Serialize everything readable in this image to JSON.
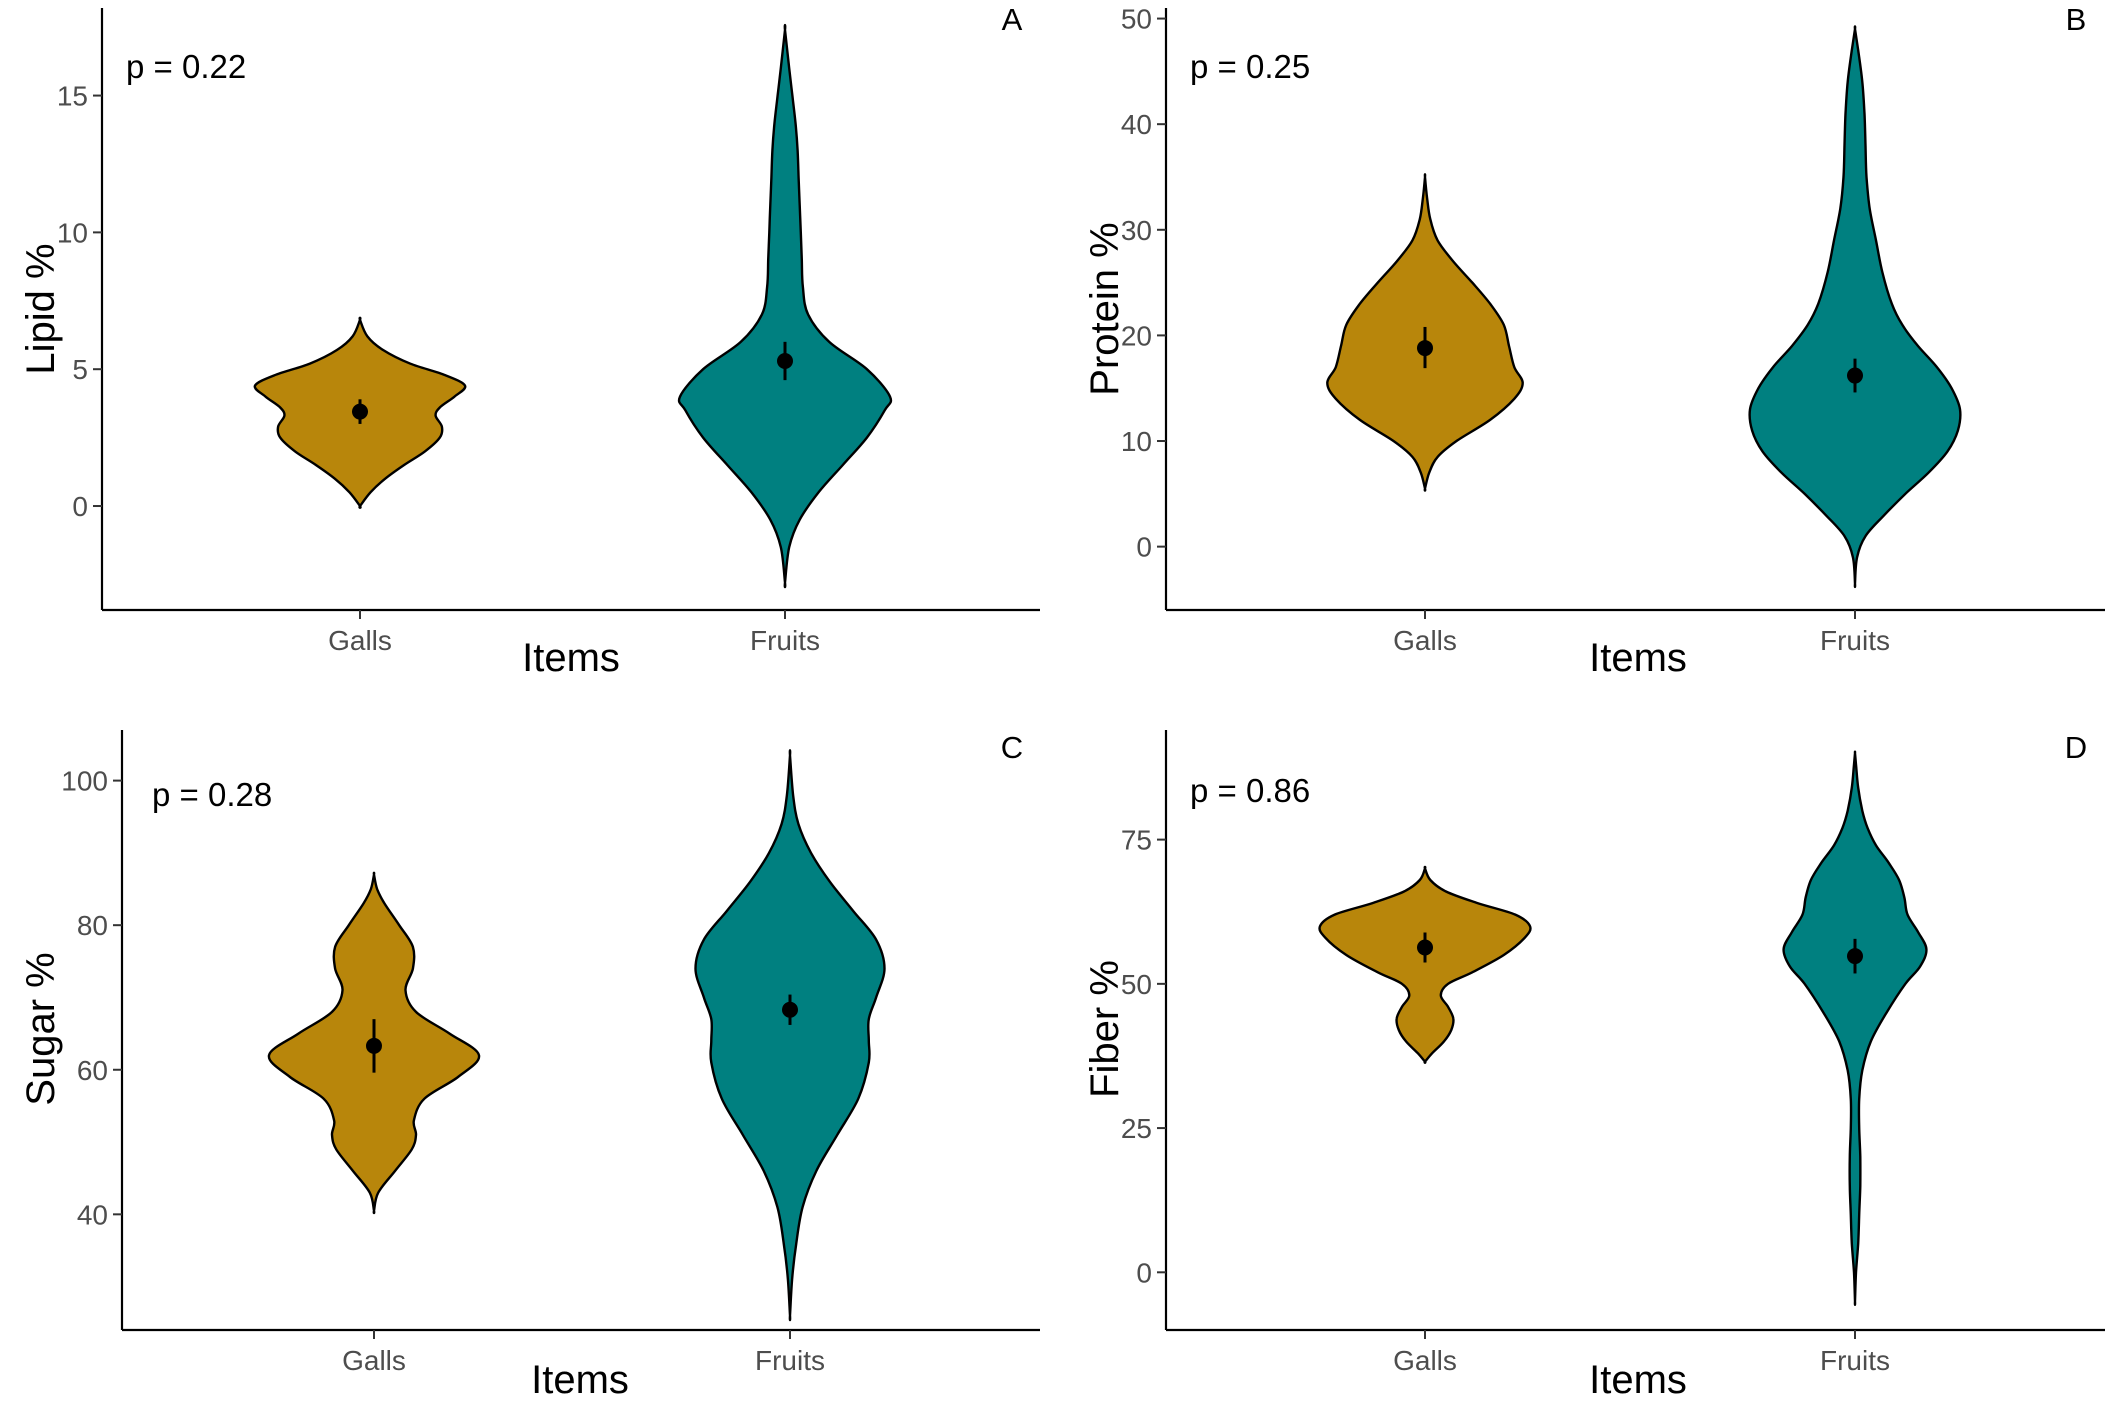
{
  "colors": {
    "galls": "#B8860B",
    "fruits": "#008080",
    "point": "#000000"
  },
  "chart_data": [
    {
      "type": "violin",
      "panel": "A",
      "pvalue": "p = 0.22",
      "xlabel": "Items",
      "ylabel": "Lipid %",
      "categories": [
        "Galls",
        "Fruits"
      ],
      "ylim": [
        -3.8,
        18.2
      ],
      "yticks": [
        0,
        5,
        10,
        15
      ],
      "series": [
        {
          "category": "Galls",
          "range": [
            0.0,
            6.8
          ],
          "mean": 3.45,
          "err": [
            3.0,
            3.9
          ],
          "density": [
            [
              0.0,
              0
            ],
            [
              0.5,
              0.1
            ],
            [
              1.0,
              0.24
            ],
            [
              1.5,
              0.42
            ],
            [
              2.0,
              0.62
            ],
            [
              2.5,
              0.76
            ],
            [
              2.9,
              0.78
            ],
            [
              3.3,
              0.72
            ],
            [
              3.6,
              0.76
            ],
            [
              4.0,
              0.9
            ],
            [
              4.4,
              1.0
            ],
            [
              4.8,
              0.8
            ],
            [
              5.2,
              0.48
            ],
            [
              5.7,
              0.22
            ],
            [
              6.2,
              0.07
            ],
            [
              6.8,
              0
            ]
          ]
        },
        {
          "category": "Fruits",
          "range": [
            -2.8,
            17.4
          ],
          "mean": 5.3,
          "err": [
            4.6,
            6.0
          ],
          "density": [
            [
              -2.8,
              0
            ],
            [
              -1.5,
              0.04
            ],
            [
              -0.5,
              0.14
            ],
            [
              0.5,
              0.32
            ],
            [
              1.5,
              0.55
            ],
            [
              2.5,
              0.78
            ],
            [
              3.5,
              0.95
            ],
            [
              4.0,
              1.0
            ],
            [
              5.0,
              0.78
            ],
            [
              6.0,
              0.42
            ],
            [
              7.0,
              0.22
            ],
            [
              8.0,
              0.17
            ],
            [
              9.0,
              0.16
            ],
            [
              10.0,
              0.15
            ],
            [
              11.0,
              0.14
            ],
            [
              12.0,
              0.13
            ],
            [
              13.0,
              0.12
            ],
            [
              14.0,
              0.1
            ],
            [
              15.0,
              0.07
            ],
            [
              16.0,
              0.04
            ],
            [
              17.4,
              0
            ]
          ]
        }
      ]
    },
    {
      "type": "violin",
      "panel": "B",
      "pvalue": "p = 0.25",
      "xlabel": "Items",
      "ylabel": "Protein %",
      "categories": [
        "Galls",
        "Fruits"
      ],
      "ylim": [
        -6,
        51
      ],
      "yticks": [
        0,
        10,
        20,
        30,
        40,
        50
      ],
      "series": [
        {
          "category": "Galls",
          "range": [
            5.5,
            35.0
          ],
          "mean": 18.8,
          "err": [
            16.9,
            20.8
          ],
          "density": [
            [
              5.5,
              0
            ],
            [
              7,
              0.04
            ],
            [
              8.5,
              0.12
            ],
            [
              10,
              0.3
            ],
            [
              12,
              0.62
            ],
            [
              14,
              0.85
            ],
            [
              15.5,
              0.93
            ],
            [
              17,
              0.85
            ],
            [
              19,
              0.8
            ],
            [
              21,
              0.75
            ],
            [
              23,
              0.62
            ],
            [
              25,
              0.45
            ],
            [
              27,
              0.27
            ],
            [
              29,
              0.12
            ],
            [
              31,
              0.05
            ],
            [
              33,
              0.02
            ],
            [
              35,
              0
            ]
          ]
        },
        {
          "category": "Fruits",
          "range": [
            -3.5,
            49.0
          ],
          "mean": 16.2,
          "err": [
            14.6,
            17.8
          ],
          "density": [
            [
              -3.5,
              0
            ],
            [
              -1,
              0.02
            ],
            [
              1,
              0.1
            ],
            [
              3,
              0.28
            ],
            [
              5,
              0.48
            ],
            [
              7,
              0.7
            ],
            [
              9,
              0.88
            ],
            [
              11,
              0.98
            ],
            [
              13,
              1.0
            ],
            [
              15,
              0.92
            ],
            [
              17,
              0.78
            ],
            [
              19,
              0.6
            ],
            [
              21,
              0.45
            ],
            [
              23,
              0.35
            ],
            [
              26,
              0.26
            ],
            [
              29,
              0.2
            ],
            [
              32,
              0.14
            ],
            [
              35,
              0.11
            ],
            [
              38,
              0.1
            ],
            [
              41,
              0.09
            ],
            [
              44,
              0.07
            ],
            [
              47,
              0.03
            ],
            [
              49,
              0
            ]
          ]
        }
      ]
    },
    {
      "type": "violin",
      "panel": "C",
      "pvalue": "p = 0.28",
      "xlabel": "Items",
      "ylabel": "Sugar %",
      "categories": [
        "Galls",
        "Fruits"
      ],
      "ylim": [
        24,
        107
      ],
      "yticks": [
        40,
        60,
        80,
        100
      ],
      "series": [
        {
          "category": "Galls",
          "range": [
            40.5,
            87.0
          ],
          "mean": 63.3,
          "err": [
            59.6,
            67.0
          ],
          "density": [
            [
              40.5,
              0
            ],
            [
              43,
              0.04
            ],
            [
              46,
              0.2
            ],
            [
              49,
              0.36
            ],
            [
              51,
              0.4
            ],
            [
              53,
              0.38
            ],
            [
              56,
              0.48
            ],
            [
              59,
              0.8
            ],
            [
              62,
              1.0
            ],
            [
              65,
              0.72
            ],
            [
              68,
              0.4
            ],
            [
              71,
              0.3
            ],
            [
              74,
              0.37
            ],
            [
              77,
              0.37
            ],
            [
              80,
              0.24
            ],
            [
              83,
              0.1
            ],
            [
              85,
              0.03
            ],
            [
              87,
              0
            ]
          ]
        },
        {
          "category": "Fruits",
          "range": [
            26.0,
            103.5
          ],
          "mean": 68.3,
          "err": [
            66.2,
            70.4
          ],
          "density": [
            [
              26,
              0
            ],
            [
              31,
              0.02
            ],
            [
              36,
              0.06
            ],
            [
              41,
              0.12
            ],
            [
              46,
              0.25
            ],
            [
              51,
              0.45
            ],
            [
              56,
              0.65
            ],
            [
              61,
              0.75
            ],
            [
              64,
              0.75
            ],
            [
              67,
              0.75
            ],
            [
              70,
              0.82
            ],
            [
              74,
              0.9
            ],
            [
              78,
              0.82
            ],
            [
              82,
              0.6
            ],
            [
              86,
              0.38
            ],
            [
              90,
              0.2
            ],
            [
              94,
              0.08
            ],
            [
              98,
              0.03
            ],
            [
              103.5,
              0
            ]
          ]
        }
      ]
    },
    {
      "type": "violin",
      "panel": "D",
      "pvalue": "p = 0.86",
      "xlabel": "Items",
      "ylabel": "Fiber %",
      "categories": [
        "Galls",
        "Fruits"
      ],
      "ylim": [
        -10,
        94
      ],
      "yticks": [
        0,
        25,
        50,
        75
      ],
      "series": [
        {
          "category": "Galls",
          "range": [
            36.5,
            70.0
          ],
          "mean": 56.3,
          "err": [
            53.7,
            58.9
          ],
          "density": [
            [
              36.5,
              0
            ],
            [
              38,
              0.07
            ],
            [
              40,
              0.18
            ],
            [
              42,
              0.25
            ],
            [
              44,
              0.27
            ],
            [
              46,
              0.22
            ],
            [
              48,
              0.15
            ],
            [
              50,
              0.22
            ],
            [
              52,
              0.45
            ],
            [
              55,
              0.75
            ],
            [
              58,
              0.95
            ],
            [
              60,
              1.0
            ],
            [
              62,
              0.86
            ],
            [
              64,
              0.5
            ],
            [
              66,
              0.2
            ],
            [
              68,
              0.05
            ],
            [
              70,
              0
            ]
          ]
        },
        {
          "category": "Fruits",
          "range": [
            -5.0,
            90.0
          ],
          "mean": 54.8,
          "err": [
            51.8,
            57.8
          ],
          "density": [
            [
              -5,
              0
            ],
            [
              0,
              0.01
            ],
            [
              5,
              0.03
            ],
            [
              10,
              0.04
            ],
            [
              15,
              0.05
            ],
            [
              20,
              0.05
            ],
            [
              25,
              0.04
            ],
            [
              30,
              0.04
            ],
            [
              35,
              0.07
            ],
            [
              40,
              0.15
            ],
            [
              45,
              0.3
            ],
            [
              50,
              0.48
            ],
            [
              53,
              0.62
            ],
            [
              56,
              0.68
            ],
            [
              59,
              0.6
            ],
            [
              62,
              0.5
            ],
            [
              65,
              0.47
            ],
            [
              68,
              0.42
            ],
            [
              71,
              0.32
            ],
            [
              74,
              0.2
            ],
            [
              77,
              0.12
            ],
            [
              80,
              0.07
            ],
            [
              84,
              0.03
            ],
            [
              88,
              0.01
            ],
            [
              90,
              0
            ]
          ]
        }
      ]
    }
  ]
}
